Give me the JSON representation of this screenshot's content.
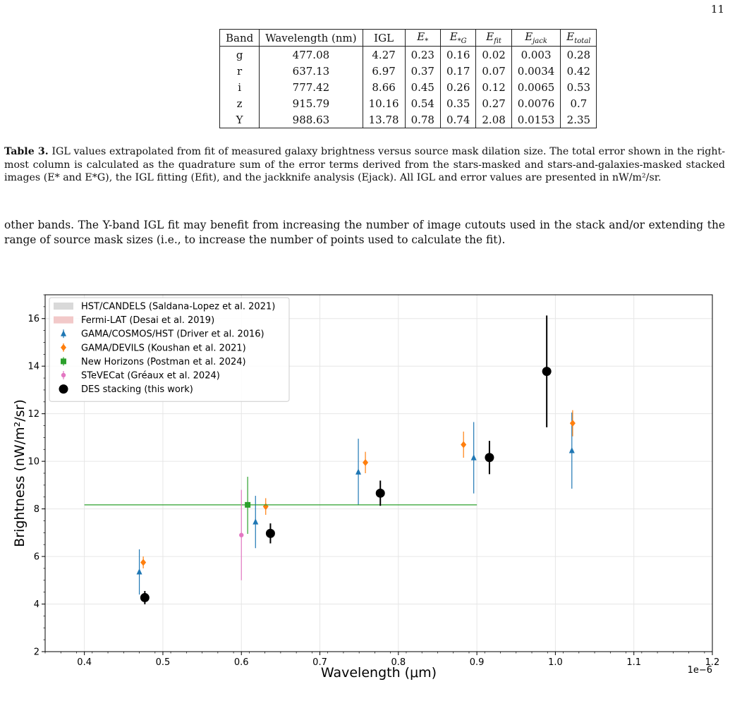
{
  "page_number": "11",
  "table": {
    "headers": [
      "Band",
      "Wavelength (nm)",
      "IGL",
      "E*",
      "E*G",
      "Efit",
      "Ejack",
      "Etotal"
    ],
    "rows": [
      [
        "g",
        "477.08",
        "4.27",
        "0.23",
        "0.16",
        "0.02",
        "0.003",
        "0.28"
      ],
      [
        "r",
        "637.13",
        "6.97",
        "0.37",
        "0.17",
        "0.07",
        "0.0034",
        "0.42"
      ],
      [
        "i",
        "777.42",
        "8.66",
        "0.45",
        "0.26",
        "0.12",
        "0.0065",
        "0.53"
      ],
      [
        "z",
        "915.79",
        "10.16",
        "0.54",
        "0.35",
        "0.27",
        "0.0076",
        "0.7"
      ],
      [
        "Y",
        "988.63",
        "13.78",
        "0.78",
        "0.74",
        "2.08",
        "0.0153",
        "2.35"
      ]
    ]
  },
  "caption": {
    "label": "Table 3.",
    "text": "IGL values extrapolated from fit of measured galaxy brightness versus source mask dilation size. The total error shown in the right-most column is calculated as the quadrature sum of the error terms derived from the stars-masked and stars-and-galaxies-masked stacked images (E* and E*G), the IGL fitting (Efit), and the jackknife analysis (Ejack). All IGL and error values are presented in nW/m²/sr."
  },
  "body_text": "other bands. The Y-band IGL fit may benefit from increasing the number of image cutouts used in the stack and/or extending the range of source mask sizes (i.e., to increase the number of points used to calculate the fit).",
  "chart_data": {
    "type": "scatter",
    "xlabel": "Wavelength (μm)",
    "ylabel": "Brightness (nW/m²/sr)",
    "x_offset_label": "1e−6",
    "xlim": [
      0.35,
      1.2
    ],
    "ylim": [
      2,
      17
    ],
    "xticks": [
      0.4,
      0.5,
      0.6,
      0.7,
      0.8,
      0.9,
      1.0,
      1.1,
      1.2
    ],
    "yticks": [
      2,
      4,
      6,
      8,
      10,
      12,
      14,
      16
    ],
    "grid": true,
    "legend_position": "top-left",
    "series": [
      {
        "name": "HST/CANDELS (Saldana-Lopez et al. 2021)",
        "marker": "band",
        "color": "#d9d9d9",
        "points": []
      },
      {
        "name": "Fermi-LAT (Desai et al. 2019)",
        "marker": "band",
        "color": "#f2c9c9",
        "points": []
      },
      {
        "name": "GAMA/COSMOS/HST (Driver et al. 2016)",
        "marker": "triangle",
        "color": "#1f77b4",
        "points": [
          {
            "x": 0.47,
            "y": 5.35,
            "lo": 4.4,
            "hi": 6.3
          },
          {
            "x": 0.618,
            "y": 7.45,
            "lo": 6.35,
            "hi": 8.55
          },
          {
            "x": 0.749,
            "y": 9.55,
            "lo": 8.15,
            "hi": 10.95
          },
          {
            "x": 0.896,
            "y": 10.15,
            "lo": 8.65,
            "hi": 11.65
          },
          {
            "x": 1.021,
            "y": 10.45,
            "lo": 8.85,
            "hi": 12.05
          }
        ]
      },
      {
        "name": "GAMA/DEVILS (Koushan et al. 2021)",
        "marker": "diamond",
        "color": "#ff7f0e",
        "points": [
          {
            "x": 0.475,
            "y": 5.75,
            "lo": 5.5,
            "hi": 6.0
          },
          {
            "x": 0.631,
            "y": 8.1,
            "lo": 7.75,
            "hi": 8.45
          },
          {
            "x": 0.758,
            "y": 9.95,
            "lo": 9.5,
            "hi": 10.4
          },
          {
            "x": 0.883,
            "y": 10.7,
            "lo": 10.15,
            "hi": 11.25
          },
          {
            "x": 1.022,
            "y": 11.6,
            "lo": 11.05,
            "hi": 12.15
          }
        ]
      },
      {
        "name": "New Horizons (Postman et al. 2024)",
        "marker": "square",
        "color": "#2ca02c",
        "points": [
          {
            "x": 0.608,
            "y": 8.17,
            "lo": 6.95,
            "hi": 9.35,
            "xlo": 0.4,
            "xhi": 0.9
          }
        ]
      },
      {
        "name": "STeVECat (Gréaux et al. 2024)",
        "marker": "pentagon",
        "color": "#e377c2",
        "points": [
          {
            "x": 0.6,
            "y": 6.9,
            "lo": 5.0,
            "hi": 8.8
          }
        ]
      },
      {
        "name": "DES stacking (this work)",
        "marker": "circle",
        "color": "#000000",
        "points": [
          {
            "x": 0.477,
            "y": 4.27,
            "lo": 3.99,
            "hi": 4.55
          },
          {
            "x": 0.637,
            "y": 6.97,
            "lo": 6.55,
            "hi": 7.39
          },
          {
            "x": 0.777,
            "y": 8.66,
            "lo": 8.13,
            "hi": 9.19
          },
          {
            "x": 0.916,
            "y": 10.16,
            "lo": 9.46,
            "hi": 10.86
          },
          {
            "x": 0.989,
            "y": 13.78,
            "lo": 11.43,
            "hi": 16.13
          }
        ]
      }
    ]
  }
}
